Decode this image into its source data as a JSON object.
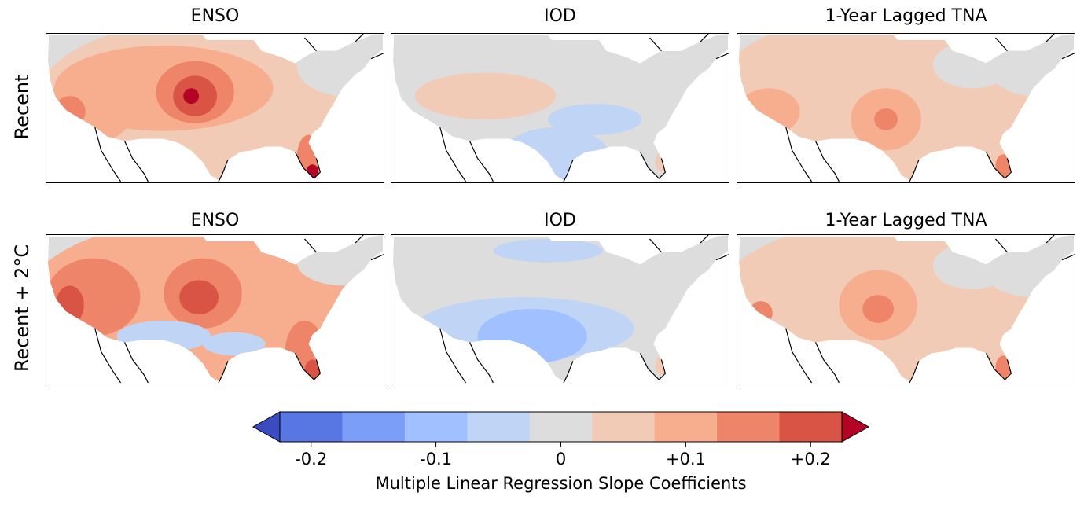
{
  "rows": [
    {
      "label": "Recent",
      "panels": [
        "ENSO",
        "IOD",
        "1-Year Lagged TNA"
      ]
    },
    {
      "label": "Recent + 2°C",
      "panels": [
        "ENSO",
        "IOD",
        "1-Year Lagged TNA"
      ]
    }
  ],
  "colorbar": {
    "label": "Multiple Linear Regression Slope Coefficients",
    "ticks": [
      "-0.2",
      "-0.1",
      "0",
      "+0.1",
      "+0.2"
    ],
    "tick_values": [
      -0.2,
      -0.1,
      0,
      0.1,
      0.2
    ],
    "bounds": [
      -0.225,
      0.225
    ],
    "extend": "both",
    "under_color": "#3b4cc0",
    "over_color": "#b40426",
    "colors": [
      "#5977e3",
      "#7b9ff9",
      "#a0c0ff",
      "#c0d4f5",
      "#dddddd",
      "#f2cbb7",
      "#f7ae8e",
      "#ee8468",
      "#d95444"
    ]
  },
  "chart_data": {
    "type": "heatmap",
    "rows": [
      "Recent",
      "Recent + 2°C"
    ],
    "columns": [
      "ENSO",
      "IOD",
      "1-Year Lagged TNA"
    ],
    "colorbar_label": "Multiple Linear Regression Slope Coefficients"
  }
}
